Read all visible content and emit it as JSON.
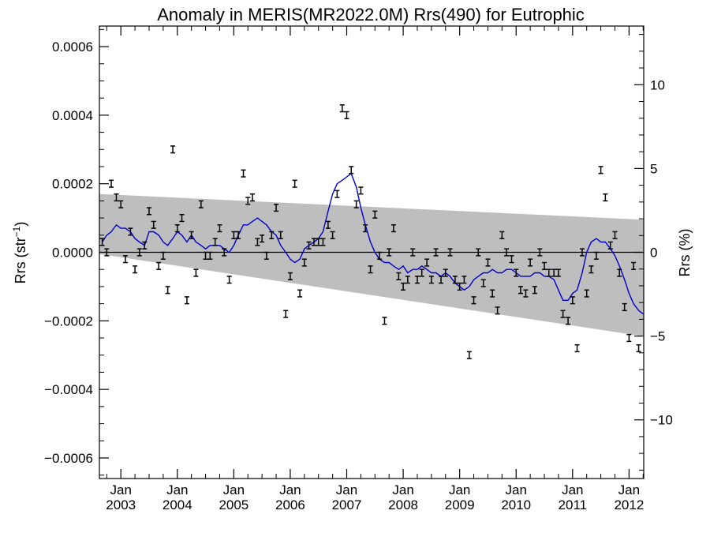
{
  "chart_data": {
    "type": "line",
    "title": "Anomaly in MERIS(MR2022.0M) Rrs(490) for Eutrophic",
    "ylabel_left_main": "Rrs (str",
    "ylabel_left_sup": "−1",
    "ylabel_left_close": ")",
    "ylabel_right": "Rrs (%)",
    "xlim": [
      2002.62,
      2012.26
    ],
    "ylim": [
      -0.00066,
      0.00066
    ],
    "ylim_right_percent": [
      -13.5,
      13.5
    ],
    "grid": false,
    "left_ticks": [
      {
        "value": 0.0006,
        "label": "0.0006"
      },
      {
        "value": 0.0004,
        "label": "0.0004"
      },
      {
        "value": 0.0002,
        "label": "0.0002"
      },
      {
        "value": 0.0,
        "label": "0.0000"
      },
      {
        "value": -0.0002,
        "label": "−0.0002"
      },
      {
        "value": -0.0004,
        "label": "−0.0004"
      },
      {
        "value": -0.0006,
        "label": "−0.0006"
      }
    ],
    "right_ticks": [
      {
        "value": 10,
        "label": "10"
      },
      {
        "value": 5,
        "label": "5"
      },
      {
        "value": 0,
        "label": "0"
      },
      {
        "value": -5,
        "label": "−5"
      },
      {
        "value": -10,
        "label": "−10"
      }
    ],
    "x_ticks": [
      {
        "value": 2003.0,
        "month": "Jan",
        "year": "2003"
      },
      {
        "value": 2004.0,
        "month": "Jan",
        "year": "2004"
      },
      {
        "value": 2005.0,
        "month": "Jan",
        "year": "2005"
      },
      {
        "value": 2006.0,
        "month": "Jan",
        "year": "2006"
      },
      {
        "value": 2007.0,
        "month": "Jan",
        "year": "2007"
      },
      {
        "value": 2008.0,
        "month": "Jan",
        "year": "2008"
      },
      {
        "value": 2009.0,
        "month": "Jan",
        "year": "2009"
      },
      {
        "value": 2010.0,
        "month": "Jan",
        "year": "2010"
      },
      {
        "value": 2011.0,
        "month": "Jan",
        "year": "2011"
      },
      {
        "value": 2012.0,
        "month": "Jan",
        "year": "2012"
      }
    ],
    "trend_band": {
      "x": [
        2002.62,
        2012.26
      ],
      "upper": [
        0.00017,
        9.5e-05
      ],
      "lower": [
        -5e-06,
        -0.000245
      ],
      "color": "#bebebe"
    },
    "zero_line": 0.0,
    "monthly_points": {
      "color": "#000000",
      "error": 1e-05,
      "x": [
        2002.67,
        2002.75,
        2002.83,
        2002.92,
        2003.0,
        2003.08,
        2003.17,
        2003.25,
        2003.33,
        2003.42,
        2003.5,
        2003.58,
        2003.67,
        2003.75,
        2003.83,
        2003.92,
        2004.0,
        2004.08,
        2004.17,
        2004.25,
        2004.33,
        2004.42,
        2004.5,
        2004.58,
        2004.67,
        2004.75,
        2004.83,
        2004.92,
        2005.0,
        2005.08,
        2005.17,
        2005.25,
        2005.33,
        2005.42,
        2005.5,
        2005.58,
        2005.67,
        2005.75,
        2005.83,
        2005.92,
        2006.0,
        2006.08,
        2006.17,
        2006.25,
        2006.33,
        2006.42,
        2006.5,
        2006.58,
        2006.67,
        2006.75,
        2006.83,
        2006.92,
        2007.0,
        2007.08,
        2007.17,
        2007.25,
        2007.33,
        2007.42,
        2007.5,
        2007.58,
        2007.67,
        2007.75,
        2007.83,
        2007.92,
        2008.0,
        2008.08,
        2008.17,
        2008.25,
        2008.33,
        2008.42,
        2008.5,
        2008.58,
        2008.67,
        2008.75,
        2008.83,
        2008.92,
        2009.0,
        2009.08,
        2009.17,
        2009.25,
        2009.33,
        2009.42,
        2009.5,
        2009.58,
        2009.67,
        2009.75,
        2009.83,
        2009.92,
        2010.0,
        2010.08,
        2010.17,
        2010.25,
        2010.33,
        2010.42,
        2010.5,
        2010.58,
        2010.67,
        2010.75,
        2010.83,
        2010.92,
        2011.0,
        2011.08,
        2011.17,
        2011.25,
        2011.33,
        2011.42,
        2011.5,
        2011.58,
        2011.67,
        2011.75,
        2011.83,
        2011.92,
        2012.0,
        2012.08,
        2012.17
      ],
      "y": [
        3e-05,
        0.0,
        0.0002,
        0.00016,
        0.00014,
        -2e-05,
        6e-05,
        -5e-05,
        0.0,
        2e-05,
        0.00012,
        8e-05,
        -4e-05,
        -1e-05,
        -0.00011,
        0.0003,
        7e-05,
        0.0001,
        -0.00014,
        5e-05,
        -6e-05,
        0.00014,
        -1e-05,
        -1e-05,
        3e-05,
        7e-05,
        0.0,
        -8e-05,
        5e-05,
        5e-05,
        0.00023,
        0.00015,
        0.00016,
        3e-05,
        4e-05,
        -1e-05,
        5e-05,
        0.00013,
        5e-05,
        -0.00018,
        -7e-05,
        0.0002,
        -0.00012,
        -3e-05,
        2e-05,
        3e-05,
        3e-05,
        3e-05,
        8e-05,
        5e-05,
        0.00017,
        0.00042,
        0.0004,
        0.00024,
        0.00014,
        0.00018,
        7e-05,
        -5e-05,
        0.00011,
        -1e-05,
        -0.0002,
        0.0,
        7e-05,
        -7e-05,
        -0.0001,
        -8e-05,
        0.0,
        -8e-05,
        -6e-05,
        -3e-05,
        -8e-05,
        0.0,
        -8e-05,
        -6e-05,
        0.0,
        -8e-05,
        -0.0001,
        -8e-05,
        -0.0003,
        -0.00014,
        0.0,
        -9e-05,
        -3e-05,
        -0.00012,
        -0.00017,
        5e-05,
        0.0,
        -2e-05,
        -6e-05,
        -0.00011,
        -0.00012,
        -3e-05,
        -0.00011,
        0.0,
        -4e-05,
        -6e-05,
        -6e-05,
        -6e-05,
        -0.00018,
        -0.0002,
        -0.00014,
        -0.00028,
        0.0,
        -0.00012,
        -5e-05,
        -1e-05,
        0.00024,
        0.00016,
        2e-05,
        5e-05,
        -6e-05,
        -0.00016,
        -0.00025,
        -4e-05,
        -0.00028
      ]
    },
    "running_mean": {
      "color": "#0000cc",
      "x": [
        2002.67,
        2002.75,
        2002.83,
        2002.92,
        2003.0,
        2003.08,
        2003.17,
        2003.25,
        2003.33,
        2003.42,
        2003.5,
        2003.58,
        2003.67,
        2003.75,
        2003.83,
        2003.92,
        2004.0,
        2004.08,
        2004.17,
        2004.25,
        2004.33,
        2004.42,
        2004.5,
        2004.58,
        2004.67,
        2004.75,
        2004.83,
        2004.92,
        2005.0,
        2005.08,
        2005.17,
        2005.25,
        2005.33,
        2005.42,
        2005.5,
        2005.58,
        2005.67,
        2005.75,
        2005.83,
        2005.92,
        2006.0,
        2006.08,
        2006.17,
        2006.25,
        2006.33,
        2006.42,
        2006.5,
        2006.58,
        2006.67,
        2006.75,
        2006.83,
        2006.92,
        2007.0,
        2007.08,
        2007.17,
        2007.25,
        2007.33,
        2007.42,
        2007.5,
        2007.58,
        2007.67,
        2007.75,
        2007.83,
        2007.92,
        2008.0,
        2008.08,
        2008.17,
        2008.25,
        2008.33,
        2008.42,
        2008.5,
        2008.58,
        2008.67,
        2008.75,
        2008.83,
        2008.92,
        2009.0,
        2009.08,
        2009.17,
        2009.25,
        2009.33,
        2009.42,
        2009.5,
        2009.58,
        2009.67,
        2009.75,
        2009.83,
        2009.92,
        2010.0,
        2010.08,
        2010.17,
        2010.25,
        2010.33,
        2010.42,
        2010.5,
        2010.58,
        2010.67,
        2010.75,
        2010.83,
        2010.92,
        2011.0,
        2011.08,
        2011.17,
        2011.25,
        2011.33,
        2011.42,
        2011.5,
        2011.58,
        2011.67,
        2011.75,
        2011.83,
        2011.92,
        2012.0,
        2012.08,
        2012.17,
        2012.25
      ],
      "y": [
        3e-05,
        5e-05,
        6e-05,
        8e-05,
        7e-05,
        7e-05,
        6e-05,
        4e-05,
        3e-05,
        2e-05,
        6e-05,
        6e-05,
        5e-05,
        3e-05,
        2e-05,
        4e-05,
        6e-05,
        5e-05,
        3e-05,
        5e-05,
        3e-05,
        2e-05,
        1e-05,
        2e-05,
        2e-05,
        2e-05,
        1e-05,
        0.0,
        2e-05,
        5e-05,
        8e-05,
        8e-05,
        9e-05,
        0.0001,
        9e-05,
        8e-05,
        6e-05,
        5e-05,
        2e-05,
        0.0,
        -2e-05,
        -3e-05,
        -2e-05,
        1e-05,
        2e-05,
        3e-05,
        4e-05,
        6e-05,
        0.00012,
        0.00017,
        0.0002,
        0.00021,
        0.00022,
        0.00023,
        0.00019,
        0.00013,
        8e-05,
        3e-05,
        0.0,
        -2e-05,
        -3e-05,
        -3e-05,
        -4e-05,
        -5e-05,
        -4e-05,
        -6e-05,
        -5e-05,
        -5e-05,
        -4e-05,
        -5e-05,
        -6e-05,
        -6e-05,
        -7e-05,
        -6e-05,
        -7e-05,
        -9e-05,
        -0.0001,
        -0.00011,
        -0.0001,
        -8e-05,
        -7e-05,
        -6e-05,
        -6e-05,
        -5e-05,
        -6e-05,
        -6e-05,
        -5e-05,
        -5e-05,
        -6e-05,
        -7e-05,
        -7e-05,
        -7e-05,
        -6e-05,
        -6e-05,
        -7e-05,
        -7e-05,
        -8e-05,
        -0.00011,
        -0.00014,
        -0.00014,
        -0.00012,
        -0.00011,
        -6e-05,
        0.0,
        3e-05,
        4e-05,
        3e-05,
        3e-05,
        1e-05,
        -1e-05,
        -4e-05,
        -8e-05,
        -0.00012,
        -0.00015,
        -0.00017,
        -0.00018
      ]
    }
  }
}
